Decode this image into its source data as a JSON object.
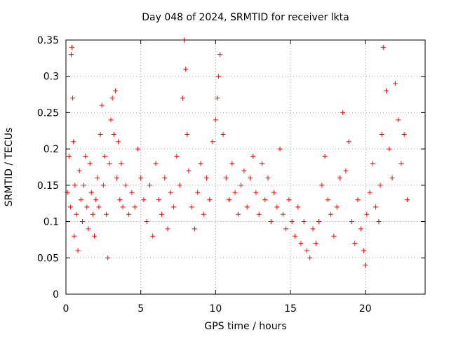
{
  "chart_data": {
    "type": "scatter",
    "title": "Day 048 of 2024, SRMTID for receiver lkta",
    "xlabel": "GPS time / hours",
    "ylabel": "SRMTID / TECUs",
    "xlim": [
      0,
      24
    ],
    "ylim": [
      0,
      0.35
    ],
    "xticks": [
      "0",
      "5",
      "10",
      "15",
      "20"
    ],
    "yticks": [
      "0",
      "0.05",
      "0.1",
      "0.15",
      "0.2",
      "0.25",
      "0.3",
      "0.35"
    ],
    "grid": true,
    "legend": "none",
    "marker": "plus",
    "color": "#ff0000",
    "series": [
      {
        "x": [
          0.1,
          0.2,
          0.3,
          0.35,
          0.4,
          0.45,
          0.5,
          0.55,
          0.6,
          0.7,
          0.8,
          0.9,
          1.0,
          1.1,
          1.2,
          1.3,
          1.4,
          1.5,
          1.6,
          1.7,
          1.8,
          1.9,
          2.0,
          2.1,
          2.2,
          2.3,
          2.4,
          2.5,
          2.6,
          2.7,
          2.8,
          2.9,
          3.0,
          3.1,
          3.2,
          3.3,
          3.4,
          3.5,
          3.6,
          3.7,
          3.8,
          4.0,
          4.2,
          4.4,
          4.6,
          4.8,
          5.0,
          5.2,
          5.4,
          5.6,
          5.8,
          6.0,
          6.2,
          6.4,
          6.6,
          6.8,
          7.0,
          7.2,
          7.4,
          7.6,
          7.8,
          7.9,
          8.0,
          8.1,
          8.2,
          8.4,
          8.6,
          8.8,
          9.0,
          9.2,
          9.4,
          9.6,
          9.8,
          10.0,
          10.1,
          10.2,
          10.3,
          10.5,
          10.7,
          10.9,
          11.1,
          11.3,
          11.5,
          11.7,
          11.9,
          12.1,
          12.3,
          12.5,
          12.7,
          12.9,
          13.1,
          13.3,
          13.5,
          13.7,
          13.9,
          14.1,
          14.3,
          14.5,
          14.7,
          14.9,
          15.1,
          15.3,
          15.5,
          15.7,
          15.9,
          16.1,
          16.3,
          16.5,
          16.7,
          16.9,
          17.1,
          17.3,
          17.5,
          17.7,
          17.9,
          18.1,
          18.3,
          18.5,
          18.7,
          18.9,
          19.1,
          19.3,
          19.5,
          19.7,
          19.9,
          20.0,
          20.1,
          20.3,
          20.5,
          20.7,
          20.9,
          21.0,
          21.1,
          21.2,
          21.4,
          21.6,
          21.8,
          22.0,
          22.2,
          22.4,
          22.6,
          22.8
        ],
        "y": [
          0.14,
          0.19,
          0.12,
          0.33,
          0.34,
          0.27,
          0.21,
          0.08,
          0.15,
          0.11,
          0.06,
          0.17,
          0.13,
          0.1,
          0.15,
          0.19,
          0.12,
          0.09,
          0.18,
          0.14,
          0.11,
          0.08,
          0.13,
          0.16,
          0.12,
          0.22,
          0.26,
          0.15,
          0.19,
          0.11,
          0.05,
          0.18,
          0.24,
          0.27,
          0.22,
          0.28,
          0.16,
          0.21,
          0.13,
          0.18,
          0.12,
          0.15,
          0.11,
          0.14,
          0.12,
          0.2,
          0.16,
          0.13,
          0.1,
          0.15,
          0.08,
          0.18,
          0.13,
          0.11,
          0.16,
          0.09,
          0.14,
          0.12,
          0.19,
          0.15,
          0.27,
          0.35,
          0.31,
          0.22,
          0.17,
          0.12,
          0.09,
          0.14,
          0.18,
          0.11,
          0.16,
          0.13,
          0.21,
          0.24,
          0.27,
          0.3,
          0.33,
          0.22,
          0.16,
          0.13,
          0.18,
          0.14,
          0.11,
          0.15,
          0.17,
          0.12,
          0.16,
          0.19,
          0.14,
          0.11,
          0.18,
          0.13,
          0.16,
          0.1,
          0.14,
          0.12,
          0.2,
          0.11,
          0.09,
          0.13,
          0.1,
          0.08,
          0.12,
          0.07,
          0.1,
          0.06,
          0.05,
          0.09,
          0.07,
          0.1,
          0.15,
          0.19,
          0.13,
          0.11,
          0.08,
          0.12,
          0.16,
          0.25,
          0.17,
          0.21,
          0.1,
          0.07,
          0.13,
          0.09,
          0.06,
          0.04,
          0.11,
          0.14,
          0.18,
          0.12,
          0.1,
          0.15,
          0.22,
          0.34,
          0.28,
          0.2,
          0.16,
          0.29,
          0.24,
          0.18,
          0.22,
          0.13
        ]
      }
    ]
  }
}
